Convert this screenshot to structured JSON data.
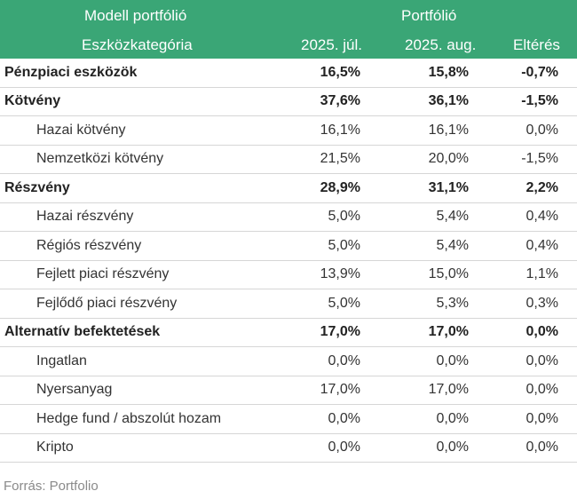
{
  "header": {
    "model_title": "Modell portfólió",
    "asset_title": "Eszközkategória",
    "portfolio_title": "Portfólió",
    "col_jul": "2025. júl.",
    "col_aug": "2025. aug.",
    "col_diff": "Eltérés",
    "bg_color": "#3aa676"
  },
  "rows": [
    {
      "label": "Pénzpiaci eszközök",
      "jul": "16,5%",
      "aug": "15,8%",
      "diff": "-0,7%",
      "type": "category"
    },
    {
      "label": "Kötvény",
      "jul": "37,6%",
      "aug": "36,1%",
      "diff": "-1,5%",
      "type": "category"
    },
    {
      "label": "Hazai kötvény",
      "jul": "16,1%",
      "aug": "16,1%",
      "diff": "0,0%",
      "type": "sub"
    },
    {
      "label": "Nemzetközi kötvény",
      "jul": "21,5%",
      "aug": "20,0%",
      "diff": "-1,5%",
      "type": "sub"
    },
    {
      "label": "Részvény",
      "jul": "28,9%",
      "aug": "31,1%",
      "diff": "2,2%",
      "type": "category"
    },
    {
      "label": "Hazai részvény",
      "jul": "5,0%",
      "aug": "5,4%",
      "diff": "0,4%",
      "type": "sub"
    },
    {
      "label": "Régiós részvény",
      "jul": "5,0%",
      "aug": "5,4%",
      "diff": "0,4%",
      "type": "sub"
    },
    {
      "label": "Fejlett piaci részvény",
      "jul": "13,9%",
      "aug": "15,0%",
      "diff": "1,1%",
      "type": "sub"
    },
    {
      "label": "Fejlődő piaci részvény",
      "jul": "5,0%",
      "aug": "5,3%",
      "diff": "0,3%",
      "type": "sub"
    },
    {
      "label": "Alternatív befektetések",
      "jul": "17,0%",
      "aug": "17,0%",
      "diff": "0,0%",
      "type": "category"
    },
    {
      "label": "Ingatlan",
      "jul": "0,0%",
      "aug": "0,0%",
      "diff": "0,0%",
      "type": "sub"
    },
    {
      "label": "Nyersanyag",
      "jul": "17,0%",
      "aug": "17,0%",
      "diff": "0,0%",
      "type": "sub"
    },
    {
      "label": "Hedge fund / abszolút hozam",
      "jul": "0,0%",
      "aug": "0,0%",
      "diff": "0,0%",
      "type": "sub"
    },
    {
      "label": "Kripto",
      "jul": "0,0%",
      "aug": "0,0%",
      "diff": "0,0%",
      "type": "sub"
    }
  ],
  "source": "Forrás: Portfolio"
}
